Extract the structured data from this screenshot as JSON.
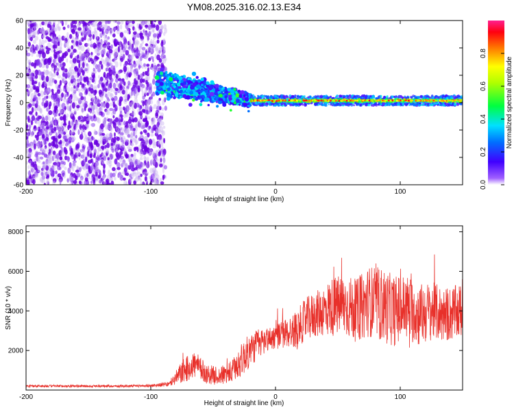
{
  "title": "YM08.2025.316.02.13.E34",
  "colors": {
    "line": "#e8302a",
    "points_low": "#c9b4f0",
    "points_mid": "#8a3cf0",
    "points_deep": "#6a00e0",
    "axis": "#000000"
  },
  "chart_data": [
    {
      "type": "heatmap",
      "title": "YM08.2025.316.02.13.E34",
      "xlabel": "Height of straight line (km)",
      "ylabel": "Frequency (Hz)",
      "xlim": [
        -200,
        150
      ],
      "ylim": [
        -60,
        60
      ],
      "xticks": [
        -200,
        -100,
        0,
        100
      ],
      "yticks": [
        -60,
        -40,
        -20,
        0,
        20,
        40,
        60
      ],
      "colorbar": {
        "label": "Normalized spectral amplitude",
        "range": [
          0,
          1
        ],
        "ticks": [
          0.0,
          0.2,
          0.4,
          0.6,
          0.8
        ],
        "tick_labels": [
          "0.0",
          "0.2",
          "0.4",
          "0.6",
          "0.8"
        ]
      },
      "regions": [
        {
          "name": "noise",
          "x_range": [
            -200,
            -88
          ],
          "freq_range": [
            -60,
            60
          ],
          "amplitude": [
            0.02,
            0.15
          ]
        },
        {
          "name": "onset",
          "x_range": [
            -95,
            -20
          ],
          "freq_center_start": 15,
          "freq_center_end": 2,
          "amplitude": [
            0.1,
            0.4
          ]
        },
        {
          "name": "steady_line",
          "x_range": [
            -20,
            150
          ],
          "freq_center": 1.5,
          "amplitude": [
            0.6,
            0.95
          ]
        }
      ]
    },
    {
      "type": "line",
      "xlabel": "Height of straight line (km)",
      "ylabel": "SNR (10 * v/v)",
      "xlim": [
        -200,
        150
      ],
      "ylim": [
        0,
        8300
      ],
      "xticks": [
        -200,
        -100,
        0,
        100
      ],
      "yticks": [
        2000,
        4000,
        6000,
        8000
      ],
      "series": [
        {
          "name": "SNR",
          "x": [
            -200,
            -180,
            -160,
            -140,
            -120,
            -100,
            -85,
            -75,
            -65,
            -55,
            -45,
            -35,
            -25,
            -15,
            -5,
            5,
            15,
            25,
            35,
            45,
            55,
            65,
            75,
            85,
            95,
            105,
            115,
            125,
            135,
            145,
            150
          ],
          "values": [
            200,
            200,
            200,
            200,
            200,
            220,
            300,
            900,
            1300,
            800,
            700,
            900,
            1700,
            2300,
            2600,
            2800,
            3000,
            3600,
            3900,
            4200,
            4300,
            4000,
            4500,
            4300,
            4000,
            4200,
            3800,
            4000,
            3800,
            3900,
            4000
          ],
          "amplitude": [
            60,
            60,
            60,
            60,
            60,
            70,
            120,
            600,
            700,
            500,
            450,
            600,
            900,
            800,
            600,
            700,
            900,
            1100,
            1200,
            1500,
            1600,
            1600,
            1800,
            1900,
            1800,
            1700,
            1600,
            1500,
            1400,
            1400,
            1400
          ]
        }
      ]
    }
  ]
}
